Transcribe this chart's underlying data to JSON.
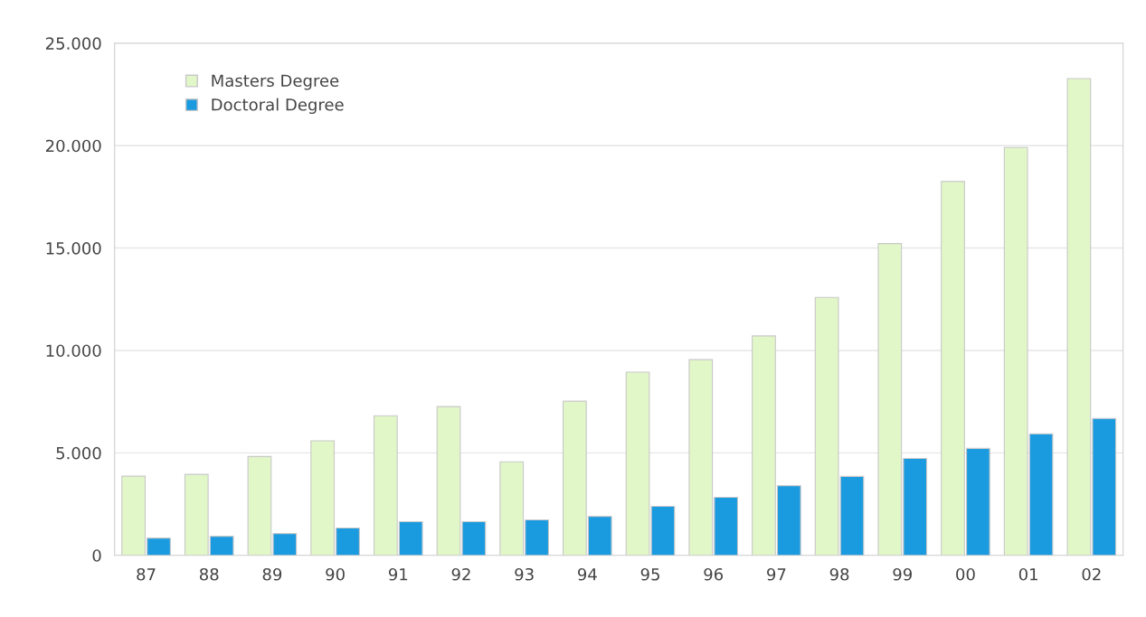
{
  "chart_data": {
    "type": "bar",
    "categories": [
      "87",
      "88",
      "89",
      "90",
      "91",
      "92",
      "93",
      "94",
      "95",
      "96",
      "97",
      "98",
      "99",
      "00",
      "01",
      "02"
    ],
    "series": [
      {
        "name": "Masters Degree",
        "color": "#e2f7c8",
        "values": [
          3860,
          3950,
          4820,
          5590,
          6810,
          7260,
          4560,
          7520,
          8940,
          9550,
          10710,
          12590,
          15220,
          18250,
          19910,
          23270
        ]
      },
      {
        "name": "Doctoral Degree",
        "color": "#1a9be0",
        "values": [
          840,
          930,
          1060,
          1330,
          1640,
          1640,
          1730,
          1900,
          2390,
          2830,
          3400,
          3850,
          4730,
          5220,
          5930,
          6680
        ]
      }
    ],
    "ylim": [
      0,
      25000
    ],
    "yticks": [
      {
        "value": 0,
        "label": "0"
      },
      {
        "value": 5000,
        "label": "5.000"
      },
      {
        "value": 10000,
        "label": "10.000"
      },
      {
        "value": 15000,
        "label": "15.000"
      },
      {
        "value": 20000,
        "label": "20.000"
      },
      {
        "value": 25000,
        "label": "25.000"
      }
    ],
    "grid": "y",
    "legend": "top left"
  }
}
